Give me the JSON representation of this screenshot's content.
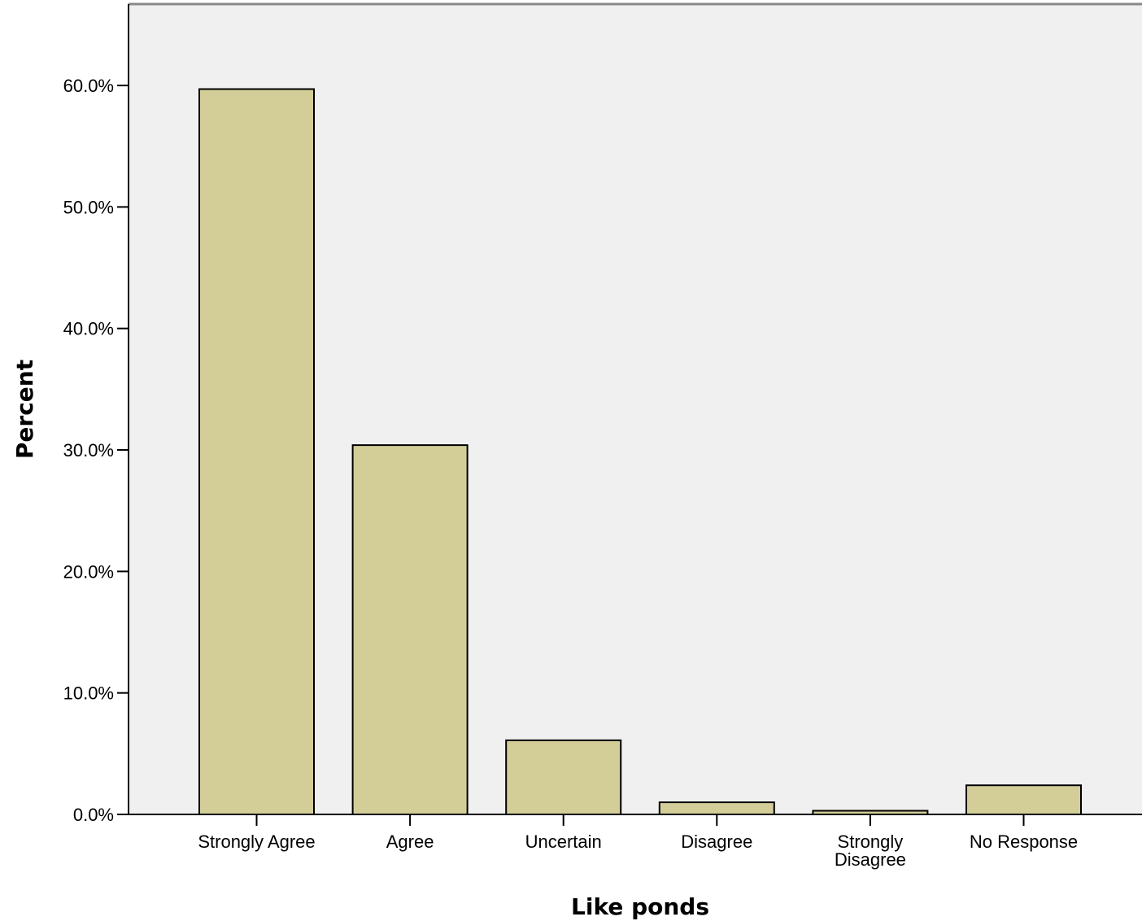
{
  "colors": {
    "plot_background": "#f0f0f0",
    "bar_fill": "#d3ce98",
    "bar_stroke": "#000000",
    "axis": "#000000",
    "frame": "#888888"
  },
  "chart_data": {
    "type": "bar",
    "categories": [
      "Strongly Agree",
      "Agree",
      "Uncertain",
      "Disagree",
      "Strongly Disagree",
      "No Response"
    ],
    "values": [
      59.7,
      30.4,
      6.1,
      1.0,
      0.3,
      2.4
    ],
    "xlabel": "Like ponds",
    "ylabel": "Percent",
    "yticks": [
      "0.0%",
      "10.0%",
      "20.0%",
      "30.0%",
      "40.0%",
      "50.0%",
      "60.0%"
    ],
    "ylim": [
      0,
      66.7
    ],
    "grid": false,
    "legend": "none"
  }
}
